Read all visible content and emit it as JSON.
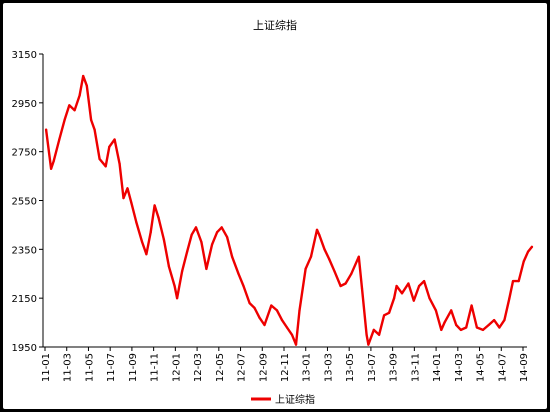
{
  "chart_data": {
    "type": "line",
    "title": "上证综指",
    "xlabel": "",
    "ylabel": "",
    "ylim": [
      1950,
      3150
    ],
    "y_ticks": [
      1950,
      2150,
      2350,
      2550,
      2750,
      2950,
      3150
    ],
    "x_ticks": [
      "11-01",
      "11-03",
      "11-05",
      "11-07",
      "11-09",
      "11-11",
      "12-01",
      "12-03",
      "12-05",
      "12-07",
      "12-09",
      "12-11",
      "13-01",
      "13-03",
      "13-05",
      "13-07",
      "13-09",
      "13-11",
      "14-01",
      "14-03",
      "14-05",
      "14-07",
      "14-09"
    ],
    "grid": false,
    "legend": "bottom",
    "color": "#ee0000",
    "series": [
      {
        "name": "上证综指",
        "x": [
          "2011-01-04",
          "2011-01-18",
          "2011-01-25",
          "2011-02-10",
          "2011-02-25",
          "2011-03-10",
          "2011-03-25",
          "2011-04-08",
          "2011-04-18",
          "2011-04-28",
          "2011-05-10",
          "2011-05-20",
          "2011-06-03",
          "2011-06-20",
          "2011-06-30",
          "2011-07-15",
          "2011-07-29",
          "2011-08-09",
          "2011-08-20",
          "2011-08-31",
          "2011-09-14",
          "2011-09-30",
          "2011-10-12",
          "2011-10-24",
          "2011-11-04",
          "2011-11-15",
          "2011-11-30",
          "2011-12-14",
          "2011-12-30",
          "2012-01-06",
          "2012-01-20",
          "2012-02-03",
          "2012-02-16",
          "2012-02-28",
          "2012-03-14",
          "2012-03-28",
          "2012-04-13",
          "2012-04-27",
          "2012-05-10",
          "2012-05-25",
          "2012-06-08",
          "2012-06-26",
          "2012-07-10",
          "2012-07-27",
          "2012-08-10",
          "2012-08-24",
          "2012-09-07",
          "2012-09-26",
          "2012-10-12",
          "2012-10-26",
          "2012-11-09",
          "2012-11-23",
          "2012-12-04",
          "2012-12-14",
          "2012-12-31",
          "2013-01-15",
          "2013-02-01",
          "2013-02-07",
          "2013-02-22",
          "2013-03-07",
          "2013-03-22",
          "2013-04-08",
          "2013-04-22",
          "2013-05-08",
          "2013-05-29",
          "2013-06-07",
          "2013-06-20",
          "2013-06-25",
          "2013-07-10",
          "2013-07-25",
          "2013-08-08",
          "2013-08-22",
          "2013-09-05",
          "2013-09-12",
          "2013-09-27",
          "2013-10-15",
          "2013-10-30",
          "2013-11-14",
          "2013-11-28",
          "2013-12-13",
          "2013-12-31",
          "2014-01-15",
          "2014-01-24",
          "2014-02-12",
          "2014-02-26",
          "2014-03-11",
          "2014-03-26",
          "2014-04-10",
          "2014-04-25",
          "2014-05-12",
          "2014-05-28",
          "2014-06-12",
          "2014-06-27",
          "2014-07-11",
          "2014-07-25",
          "2014-08-04",
          "2014-08-20",
          "2014-09-03",
          "2014-09-15",
          "2014-09-26"
        ],
        "values": [
          2840,
          2680,
          2710,
          2800,
          2880,
          2940,
          2920,
          2980,
          3060,
          3020,
          2880,
          2840,
          2720,
          2690,
          2770,
          2800,
          2700,
          2560,
          2600,
          2540,
          2460,
          2380,
          2330,
          2420,
          2530,
          2480,
          2390,
          2280,
          2200,
          2150,
          2260,
          2340,
          2410,
          2440,
          2380,
          2270,
          2370,
          2420,
          2440,
          2400,
          2320,
          2250,
          2200,
          2130,
          2110,
          2070,
          2040,
          2120,
          2100,
          2060,
          2030,
          2000,
          1960,
          2100,
          2270,
          2320,
          2430,
          2410,
          2350,
          2310,
          2260,
          2200,
          2210,
          2250,
          2320,
          2190,
          2000,
          1960,
          2020,
          2000,
          2080,
          2090,
          2150,
          2200,
          2170,
          2210,
          2140,
          2200,
          2220,
          2150,
          2100,
          2020,
          2050,
          2100,
          2040,
          2020,
          2030,
          2120,
          2030,
          2020,
          2040,
          2060,
          2030,
          2060,
          2150,
          2220,
          2220,
          2300,
          2340,
          2360
        ]
      }
    ]
  }
}
